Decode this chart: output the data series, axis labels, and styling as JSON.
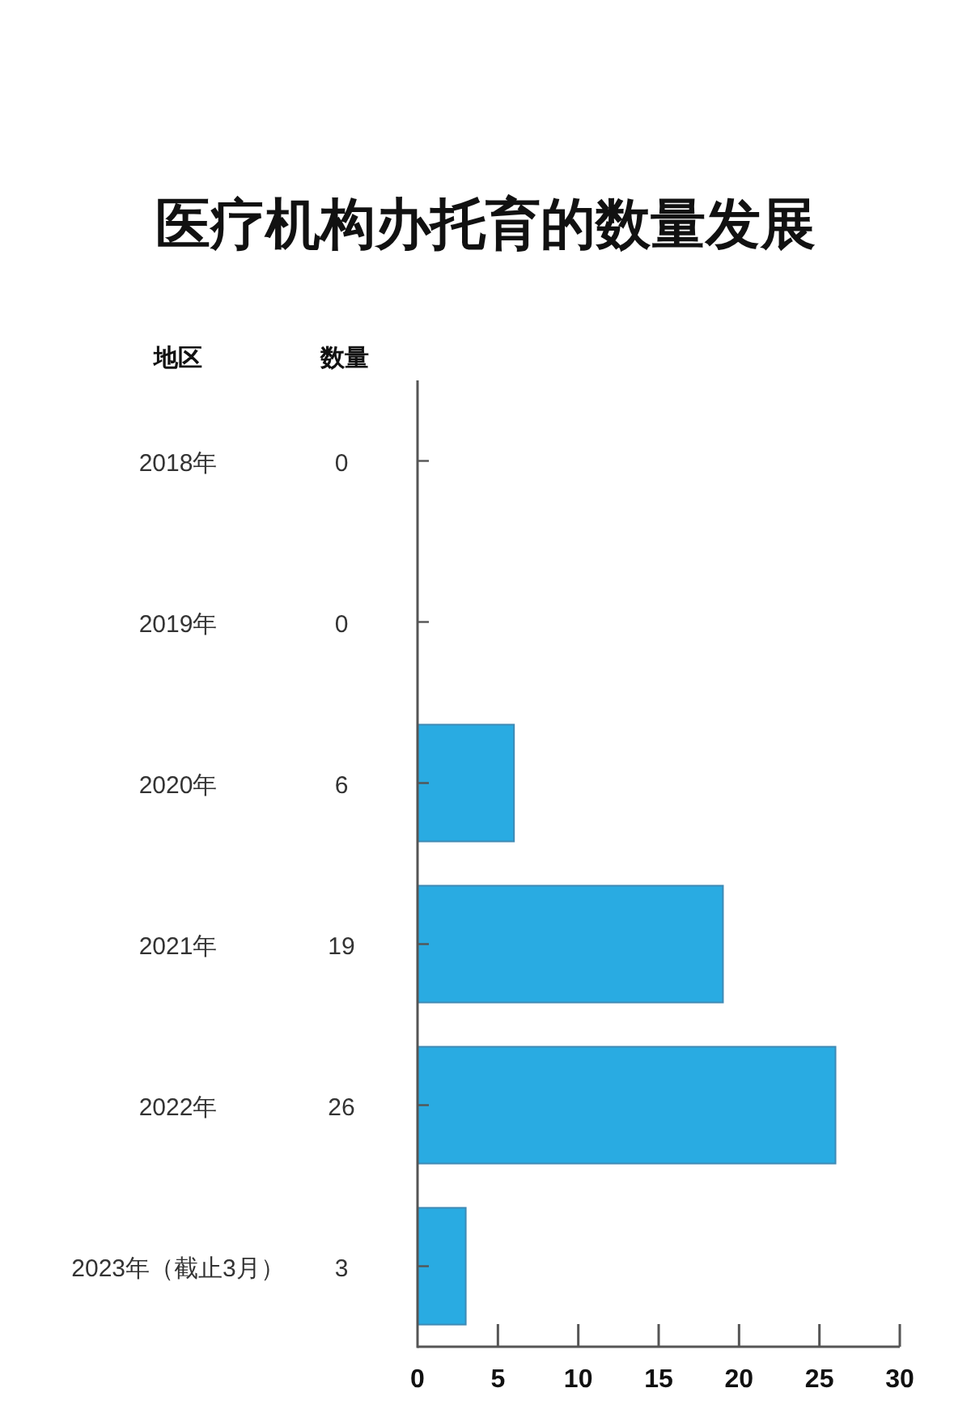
{
  "chart_data": {
    "type": "bar",
    "orientation": "horizontal",
    "title": "医疗机构办托育的数量发展",
    "ylabel": "地区",
    "annotations": [
      "数量"
    ],
    "categories": [
      "2018年",
      "2019年",
      "2020年",
      "2021年",
      "2022年",
      "2023年（截止3月）"
    ],
    "values": [
      0,
      0,
      6,
      19,
      26,
      3
    ],
    "color": "#29abe2",
    "data_labels": true,
    "xlim": [
      0,
      30
    ],
    "xticks": [
      0,
      5,
      10,
      15,
      20,
      25,
      30
    ]
  }
}
